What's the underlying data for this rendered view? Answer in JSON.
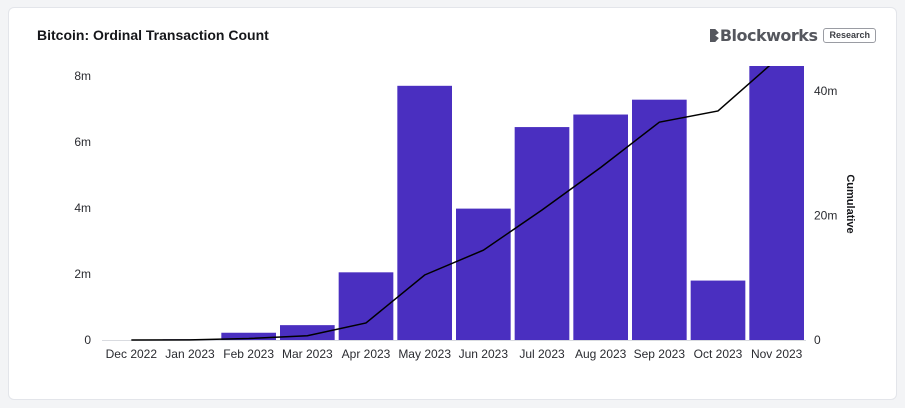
{
  "header": {
    "title": "Bitcoin: Ordinal Transaction Count",
    "brand": "Blockworks",
    "brand_badge": "Research"
  },
  "chart_data": {
    "type": "bar",
    "title": "Bitcoin: Ordinal Transaction Count",
    "categories": [
      "Dec 2022",
      "Jan 2023",
      "Feb 2023",
      "Mar 2023",
      "Apr 2023",
      "May 2023",
      "Jun 2023",
      "Jul 2023",
      "Aug 2023",
      "Sep 2023",
      "Oct 2023",
      "Nov 2023"
    ],
    "series": [
      {
        "type": "bar",
        "axis": "left",
        "values": [
          0,
          0.02,
          0.22,
          0.45,
          2.05,
          7.7,
          3.98,
          6.45,
          6.83,
          7.28,
          1.8,
          8.3
        ],
        "color": "#4a2fc0"
      },
      {
        "name": "Cumulative",
        "type": "line",
        "axis": "right",
        "values": [
          0,
          0.02,
          0.24,
          0.69,
          2.74,
          10.44,
          14.42,
          20.87,
          27.7,
          34.98,
          36.78,
          45.08
        ],
        "color": "#000000"
      }
    ],
    "y_left": {
      "ticks": [
        "0",
        "2m",
        "4m",
        "6m",
        "8m"
      ],
      "tick_values": [
        0,
        2,
        4,
        6,
        8
      ],
      "lim": [
        0,
        8.3
      ]
    },
    "y_right": {
      "label": "Cumulative",
      "ticks": [
        "0",
        "20m",
        "40m"
      ],
      "tick_values": [
        0,
        20,
        40
      ],
      "lim": [
        0,
        44
      ]
    },
    "grid": false,
    "legend": "none"
  }
}
